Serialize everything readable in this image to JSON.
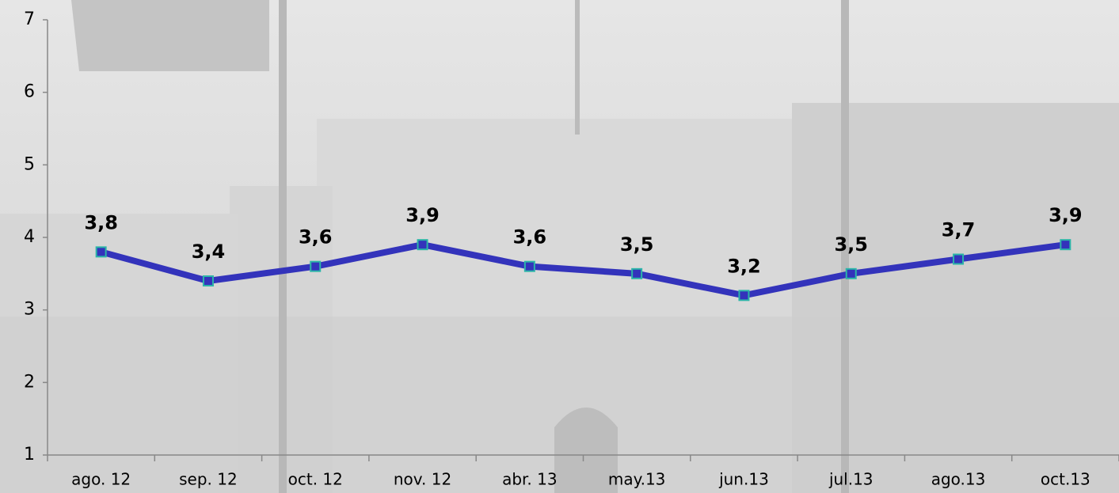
{
  "chart_data": {
    "type": "line",
    "categories": [
      "ago. 12",
      "sep. 12",
      "oct. 12",
      "nov. 12",
      "abr. 13",
      "may.13",
      "jun.13",
      "jul.13",
      "ago.13",
      "oct.13"
    ],
    "series": [
      {
        "name": null,
        "color": "#3333bb",
        "values": [
          3.8,
          3.4,
          3.6,
          3.9,
          3.6,
          3.5,
          3.2,
          3.5,
          3.7,
          3.9
        ],
        "value_labels": [
          "3,8",
          "3,4",
          "3,6",
          "3,9",
          "3,6",
          "3,5",
          "3,2",
          "3,5",
          "3,7",
          "3,9"
        ]
      }
    ],
    "ylim": [
      1,
      7
    ],
    "yticks": [
      1,
      2,
      3,
      4,
      5,
      6,
      7
    ]
  }
}
